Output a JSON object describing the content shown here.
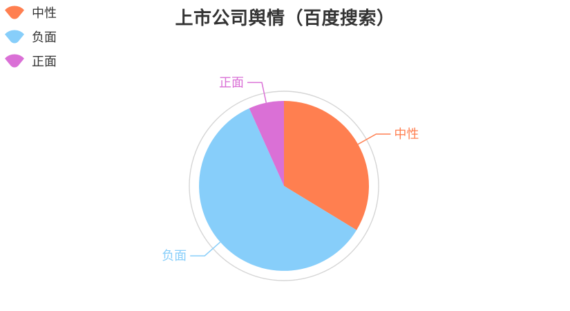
{
  "title": "上市公司舆情（百度搜索）",
  "background_color": "#ffffff",
  "text_color": "#333333",
  "chart_data": {
    "type": "pie",
    "title": "上市公司舆情（百度搜索）",
    "legend_position": "top-left",
    "legend_orient": "vertical",
    "legend_icon": "fan-sector",
    "labels_shown": true,
    "label_lines": true,
    "outer_ring": true,
    "ring_color": "#d5d5d5",
    "start_angle_deg": 0,
    "clockwise": true,
    "categories": [
      "中性",
      "负面",
      "正面"
    ],
    "series": [
      {
        "name": "中性",
        "percent": 33.7,
        "color": "#ff7f50"
      },
      {
        "name": "负面",
        "percent": 59.6,
        "color": "#87cefa"
      },
      {
        "name": "正面",
        "percent": 6.7,
        "color": "#da70d6"
      }
    ]
  }
}
